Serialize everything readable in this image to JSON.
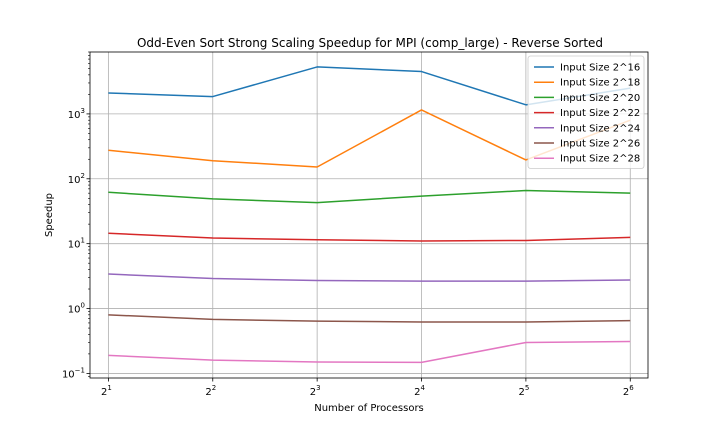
{
  "chart_data": {
    "type": "line",
    "title": "Odd-Even Sort Strong Scaling Speedup for MPI (comp_large) - Reverse Sorted",
    "xlabel": "Number of Processors",
    "ylabel": "Speedup",
    "yscale": "log",
    "xscale": "log2",
    "x": [
      2,
      4,
      8,
      16,
      32,
      64
    ],
    "x_tick_labels": [
      {
        "base": "2",
        "exp": "1"
      },
      {
        "base": "2",
        "exp": "2"
      },
      {
        "base": "2",
        "exp": "3"
      },
      {
        "base": "2",
        "exp": "4"
      },
      {
        "base": "2",
        "exp": "5"
      },
      {
        "base": "2",
        "exp": "6"
      }
    ],
    "y_tick_labels": [
      {
        "value": 0.1,
        "base": "10",
        "exp": "−1"
      },
      {
        "value": 1,
        "base": "10",
        "exp": "0"
      },
      {
        "value": 10,
        "base": "10",
        "exp": "1"
      },
      {
        "value": 100,
        "base": "10",
        "exp": "2"
      },
      {
        "value": 1000,
        "base": "10",
        "exp": "3"
      }
    ],
    "ylim": [
      0.085,
      9000
    ],
    "xlim": [
      1.77,
      72
    ],
    "grid": true,
    "legend_position": "top-right",
    "series": [
      {
        "name": "Input Size 2^16",
        "color": "#1f77b4",
        "values": [
          2100,
          1850,
          5300,
          4500,
          1380,
          2500
        ]
      },
      {
        "name": "Input Size 2^18",
        "color": "#ff7f0e",
        "values": [
          275,
          190,
          152,
          1150,
          195,
          800
        ]
      },
      {
        "name": "Input Size 2^20",
        "color": "#2ca02c",
        "values": [
          62,
          49,
          43,
          54,
          66,
          60
        ]
      },
      {
        "name": "Input Size 2^22",
        "color": "#d62728",
        "values": [
          14.5,
          12.2,
          11.5,
          11.0,
          11.2,
          12.5
        ]
      },
      {
        "name": "Input Size 2^24",
        "color": "#9467bd",
        "values": [
          3.4,
          2.9,
          2.7,
          2.65,
          2.65,
          2.75
        ]
      },
      {
        "name": "Input Size 2^26",
        "color": "#8c564b",
        "values": [
          0.8,
          0.68,
          0.64,
          0.62,
          0.62,
          0.65
        ]
      },
      {
        "name": "Input Size 2^28",
        "color": "#e377c2",
        "values": [
          0.19,
          0.16,
          0.15,
          0.148,
          0.3,
          0.31
        ]
      }
    ]
  }
}
